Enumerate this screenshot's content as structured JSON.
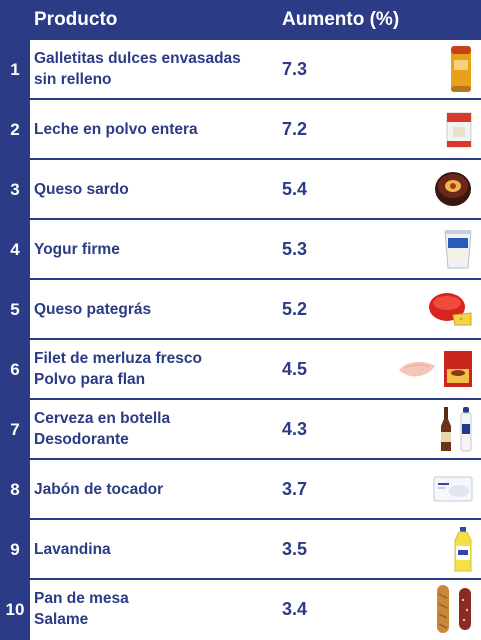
{
  "header": {
    "product": "Producto",
    "increase": "Aumento (%)"
  },
  "rows": [
    {
      "num": "1",
      "line1": "Galletitas dulces envasadas",
      "line2": "sin relleno",
      "value": "7.3"
    },
    {
      "num": "2",
      "line1": "Leche en polvo entera",
      "line2": "",
      "value": "7.2"
    },
    {
      "num": "3",
      "line1": "Queso sardo",
      "line2": "",
      "value": "5.4"
    },
    {
      "num": "4",
      "line1": "Yogur firme",
      "line2": "",
      "value": "5.3"
    },
    {
      "num": "5",
      "line1": "Queso pategrás",
      "line2": "",
      "value": "5.2"
    },
    {
      "num": "6",
      "line1": "Filet de merluza fresco",
      "line2": "Polvo para flan",
      "value": "4.5"
    },
    {
      "num": "7",
      "line1": "Cerveza en botella",
      "line2": "Desodorante",
      "value": "4.3"
    },
    {
      "num": "8",
      "line1": "Jabón de tocador",
      "line2": "",
      "value": "3.7"
    },
    {
      "num": "9",
      "line1": "Lavandina",
      "line2": "",
      "value": "3.5"
    },
    {
      "num": "10",
      "line1": "Pan de mesa",
      "line2": "Salame",
      "value": "3.4"
    }
  ],
  "colors": {
    "navy": "#2b3b86",
    "white": "#ffffff"
  },
  "icons": [
    "cookie-tube-icon",
    "milk-powder-box-icon",
    "cheese-wheel-icon",
    "yogurt-cup-icon",
    "gouda-cheese-icon",
    "fish-fillet-icon",
    "flan-box-icon",
    "beer-bottle-icon",
    "deodorant-icon",
    "soap-box-icon",
    "bleach-bottle-icon",
    "bread-loaf-icon",
    "salami-icon"
  ]
}
